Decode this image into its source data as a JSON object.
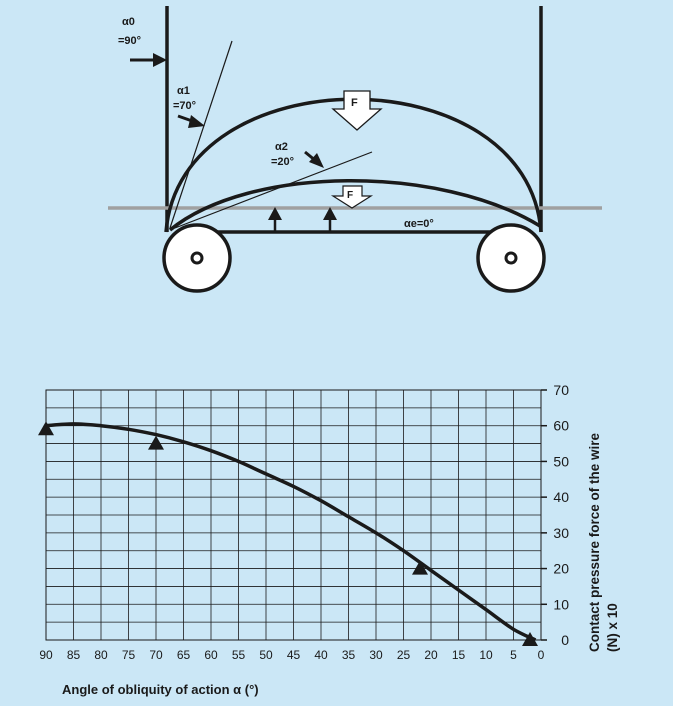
{
  "diagram": {
    "angle_labels": [
      {
        "symbol": "α0",
        "value": "=90°"
      },
      {
        "symbol": "α1",
        "value": "=70°"
      },
      {
        "symbol": "α2",
        "value": "=20°"
      }
    ],
    "alpha_e_label": "αe=0°",
    "force_label_upper": "F",
    "force_label_lower": "F",
    "colors": {
      "background": "#cbe7f6",
      "ink": "#1a1a1a",
      "guide_line": "#a0a0a0",
      "arrow_fill": "#ffffff"
    }
  },
  "chart_data": {
    "type": "line",
    "title": "",
    "xlabel": "Angle of obliquity of action α (°)",
    "ylabel_line1": "Contact pressure force of the wire",
    "ylabel_line2": "(N) x 10",
    "xlim": [
      90,
      0
    ],
    "ylim": [
      0,
      70
    ],
    "x_ticks": [
      "90",
      "85",
      "80",
      "75",
      "70",
      "65",
      "60",
      "55",
      "50",
      "45",
      "40",
      "35",
      "30",
      "25",
      "20",
      "15",
      "10",
      "5",
      "0"
    ],
    "y_ticks": [
      "0",
      "10",
      "20",
      "30",
      "40",
      "50",
      "60",
      "70"
    ],
    "y_tick_suffix": "",
    "grid": true,
    "series": [
      {
        "x": [
          90,
          85,
          80,
          75,
          70,
          65,
          60,
          55,
          50,
          45,
          40,
          35,
          30,
          25,
          20,
          15,
          10,
          5,
          1
        ],
        "values": [
          60.0,
          60.5,
          60.0,
          59.0,
          57.5,
          55.5,
          53.0,
          50.0,
          46.5,
          43.0,
          39.0,
          34.5,
          30.0,
          25.0,
          19.5,
          14.0,
          8.5,
          3.0,
          0.0
        ]
      }
    ],
    "markers": [
      {
        "x": 90,
        "y": 59
      },
      {
        "x": 70,
        "y": 55
      },
      {
        "x": 22,
        "y": 20
      },
      {
        "x": 2,
        "y": 0
      }
    ]
  }
}
